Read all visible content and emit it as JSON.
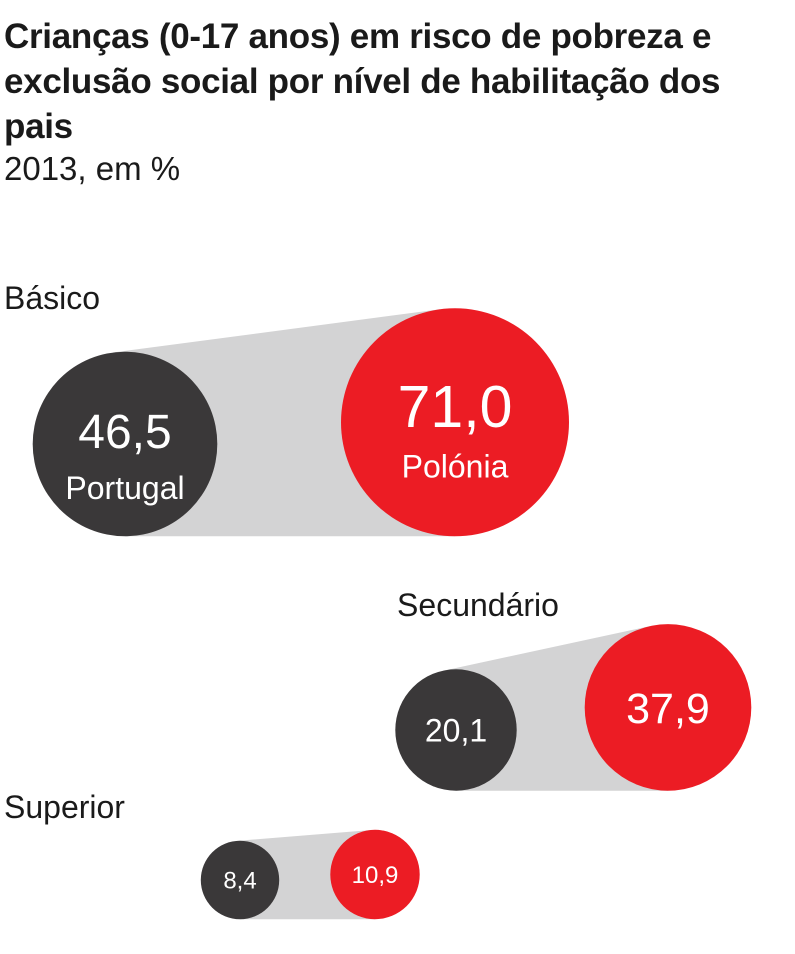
{
  "title": "Crianças (0-17 anos) em risco de pobreza e exclusão social por nível de habilitação dos pais",
  "subtitle": "2013, em %",
  "colors": {
    "portugal": "#3a3839",
    "polonia": "#ec1c24",
    "connector": "#d3d3d4",
    "text": "#1a1a1a",
    "on_bubble": "#ffffff"
  },
  "chart_data": {
    "type": "bubble",
    "title": "Crianças (0-17 anos) em risco de pobreza e exclusão social por nível de habilitação dos pais",
    "subtitle": "2013, em %",
    "series": [
      {
        "name": "Portugal",
        "color": "#3a3839"
      },
      {
        "name": "Polónia",
        "color": "#ec1c24"
      }
    ],
    "groups": [
      {
        "label": "Básico",
        "values": {
          "Portugal": 46.5,
          "Polónia": 71.0
        },
        "display": [
          "46,5",
          "71,0"
        ],
        "show_country_names": true
      },
      {
        "label": "Secundário",
        "values": {
          "Portugal": 20.1,
          "Polónia": 37.9
        },
        "display": [
          "20,1",
          "37,9"
        ],
        "show_country_names": false
      },
      {
        "label": "Superior",
        "values": {
          "Portugal": 8.4,
          "Polónia": 10.9
        },
        "display": [
          "8,4",
          "10,9"
        ],
        "show_country_names": false
      }
    ]
  }
}
